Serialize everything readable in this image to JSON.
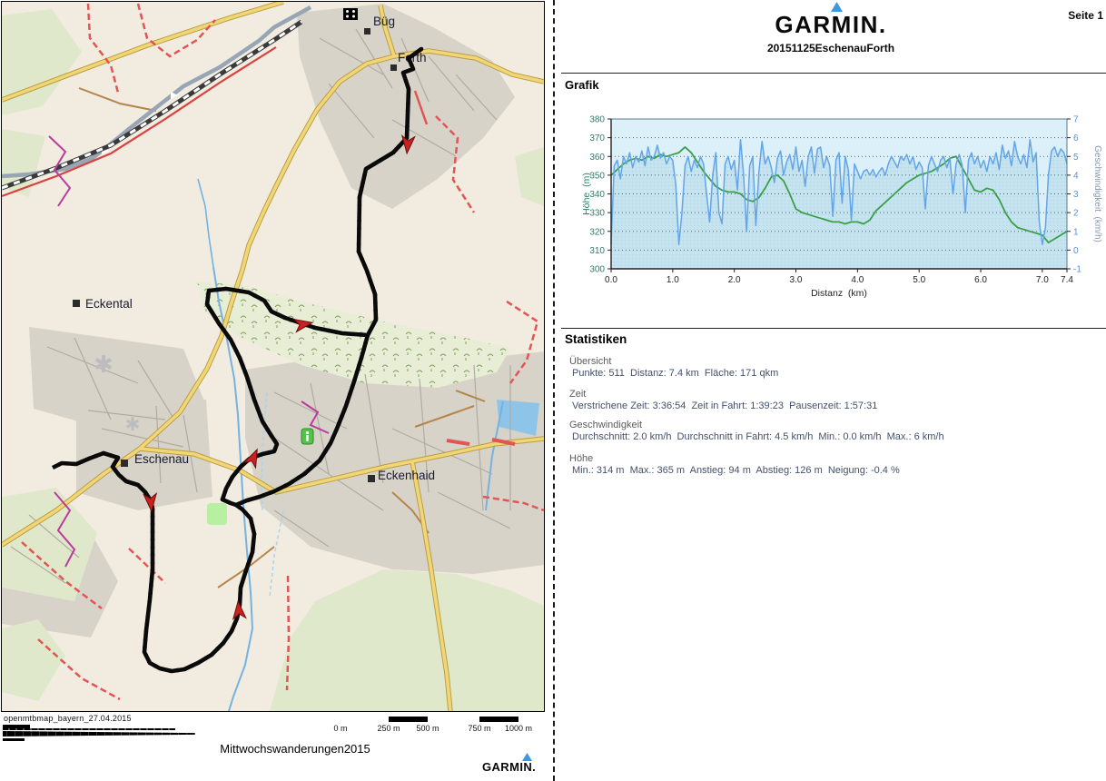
{
  "page": {
    "label": "Seite 1"
  },
  "report": {
    "brand": "GARMIN.",
    "title": "20151125EschenauForth",
    "sections": {
      "grafik": "Grafik",
      "statistiken": "Statistiken"
    }
  },
  "statistics": {
    "uebersicht": {
      "label": "Übersicht",
      "line": "Punkte: 511  Distanz: 7.4 km  Fläche: 171 qkm"
    },
    "zeit": {
      "label": "Zeit",
      "line": "Verstrichene Zeit: 3:36:54  Zeit in Fahrt: 1:39:23  Pausenzeit: 1:57:31"
    },
    "geschwindigkeit": {
      "label": "Geschwindigkeit",
      "line": "Durchschnitt: 2.0 km/h  Durchschnitt in Fahrt: 4.5 km/h  Min.: 0.0 km/h  Max.: 6 km/h"
    },
    "hoehe": {
      "label": "Höhe",
      "line": "Min.: 314 m  Max.: 365 m  Anstieg: 94 m  Abstieg: 126 m  Neigung: -0.4 %"
    }
  },
  "map": {
    "attribution": "openmtbmap_bayern_27.04.2015",
    "caption": "Mittwochswanderungen2015",
    "brand": "GARMIN.",
    "labels": [
      "Büg",
      "Forth",
      "Eckental",
      "Eschenau",
      "Eckenhaid"
    ],
    "scale": {
      "ticks": [
        "0 m",
        "250 m",
        "500 m",
        "750 m",
        "1000 m"
      ]
    }
  },
  "colors": {
    "garmin_blue": "#3f97dd",
    "elevation_green": "#3aa048",
    "speed_blue": "#63a5e8",
    "track_black": "#0a0a0a",
    "arrow_red": "#c92020",
    "plot_bg": "#dcf0fa",
    "speed_fill": "#c8e4f0"
  },
  "chart_data": {
    "type": "line",
    "title": "",
    "xlabel": "Distanz  (km)",
    "xlim": [
      0,
      7.4
    ],
    "x_tick_values": [
      0,
      1,
      2,
      3,
      4,
      5,
      6,
      7,
      7.4
    ],
    "x_tick_labels": [
      "0.0",
      "1.0",
      "2.0",
      "3.0",
      "4.0",
      "5.0",
      "6.0",
      "7.0",
      "7.4"
    ],
    "grid": "dotted-horizontal",
    "legend": "none",
    "y_left": {
      "label": "Höhe  (m)",
      "lim": [
        300,
        380
      ],
      "ticks": [
        300,
        310,
        320,
        330,
        340,
        350,
        360,
        370,
        380
      ],
      "color": "#2a7d6d"
    },
    "y_right": {
      "label": "Geschwindigkeit  (km/h)",
      "lim": [
        -1,
        7
      ],
      "ticks": [
        -1,
        0,
        1,
        2,
        3,
        4,
        5,
        6,
        7
      ],
      "color": "#5c8fcf"
    },
    "series": [
      {
        "name": "Höhe",
        "axis": "left",
        "color": "#3aa048",
        "x_start": 0,
        "x_step": 0.1,
        "y": [
          350,
          353,
          356,
          358,
          359,
          358,
          360,
          359,
          361,
          360,
          361,
          362,
          365,
          362,
          357,
          352,
          348,
          344,
          342,
          341,
          341,
          340,
          337,
          336,
          338,
          343,
          349,
          350,
          347,
          340,
          332,
          330,
          329,
          328,
          327,
          326,
          325,
          325,
          324,
          325,
          325,
          324,
          326,
          331,
          334,
          337,
          340,
          343,
          346,
          348,
          350,
          351,
          352,
          354,
          356,
          359,
          360,
          354,
          348,
          342,
          341,
          343,
          342,
          337,
          330,
          325,
          322,
          321,
          320,
          319,
          318,
          314,
          316,
          318,
          320
        ]
      },
      {
        "name": "Geschwindigkeit",
        "axis": "right",
        "color": "#63a5e8",
        "fill": true,
        "x_start": 0,
        "x_step": 0.05,
        "y": [
          0.3,
          4.5,
          4.8,
          3.8,
          5.0,
          4.6,
          5.2,
          4.4,
          5.0,
          4.7,
          5.3,
          4.5,
          5.5,
          4.8,
          5.0,
          5.6,
          4.9,
          5.2,
          4.6,
          5.0,
          4.8,
          3.5,
          0.3,
          2.0,
          4.5,
          5.0,
          4.2,
          4.8,
          4.4,
          5.0,
          4.6,
          3.0,
          1.5,
          4.0,
          5.2,
          2.0,
          1.4,
          4.6,
          5.0,
          4.3,
          4.8,
          3.2,
          5.9,
          4.0,
          1.0,
          4.5,
          5.0,
          1.3,
          4.2,
          5.8,
          4.6,
          5.0,
          4.4,
          3.6,
          4.9,
          5.3,
          4.0,
          4.7,
          5.1,
          4.3,
          5.5,
          4.2,
          4.8,
          3.4,
          5.0,
          5.5,
          4.1,
          5.4,
          5.5,
          4.4,
          5.0,
          4.5,
          1.8,
          4.8,
          5.2,
          2.5,
          5.0,
          4.3,
          1.6,
          4.6,
          4.2,
          3.8,
          4.2,
          4.3,
          4.0,
          4.3,
          3.9,
          4.2,
          4.4,
          4.0,
          4.6,
          5.0,
          4.7,
          4.4,
          5.0,
          4.8,
          5.1,
          4.6,
          5.0,
          4.3,
          4.7,
          4.4,
          2.2,
          4.5,
          5.0,
          4.6,
          4.2,
          4.8,
          5.0,
          4.4,
          4.9,
          3.0,
          4.6,
          5.1,
          4.5,
          2.0,
          4.8,
          5.2,
          4.6,
          5.0,
          4.4,
          4.8,
          4.2,
          5.0,
          4.6,
          5.2,
          4.3,
          5.6,
          4.9,
          5.3,
          4.5,
          5.8,
          5.0,
          4.6,
          5.1,
          4.4,
          5.9,
          4.7,
          5.2,
          1.5,
          0.3,
          1.2,
          4.0,
          5.3,
          5.5,
          5.0,
          5.4,
          5.2,
          4.6
        ]
      }
    ]
  }
}
